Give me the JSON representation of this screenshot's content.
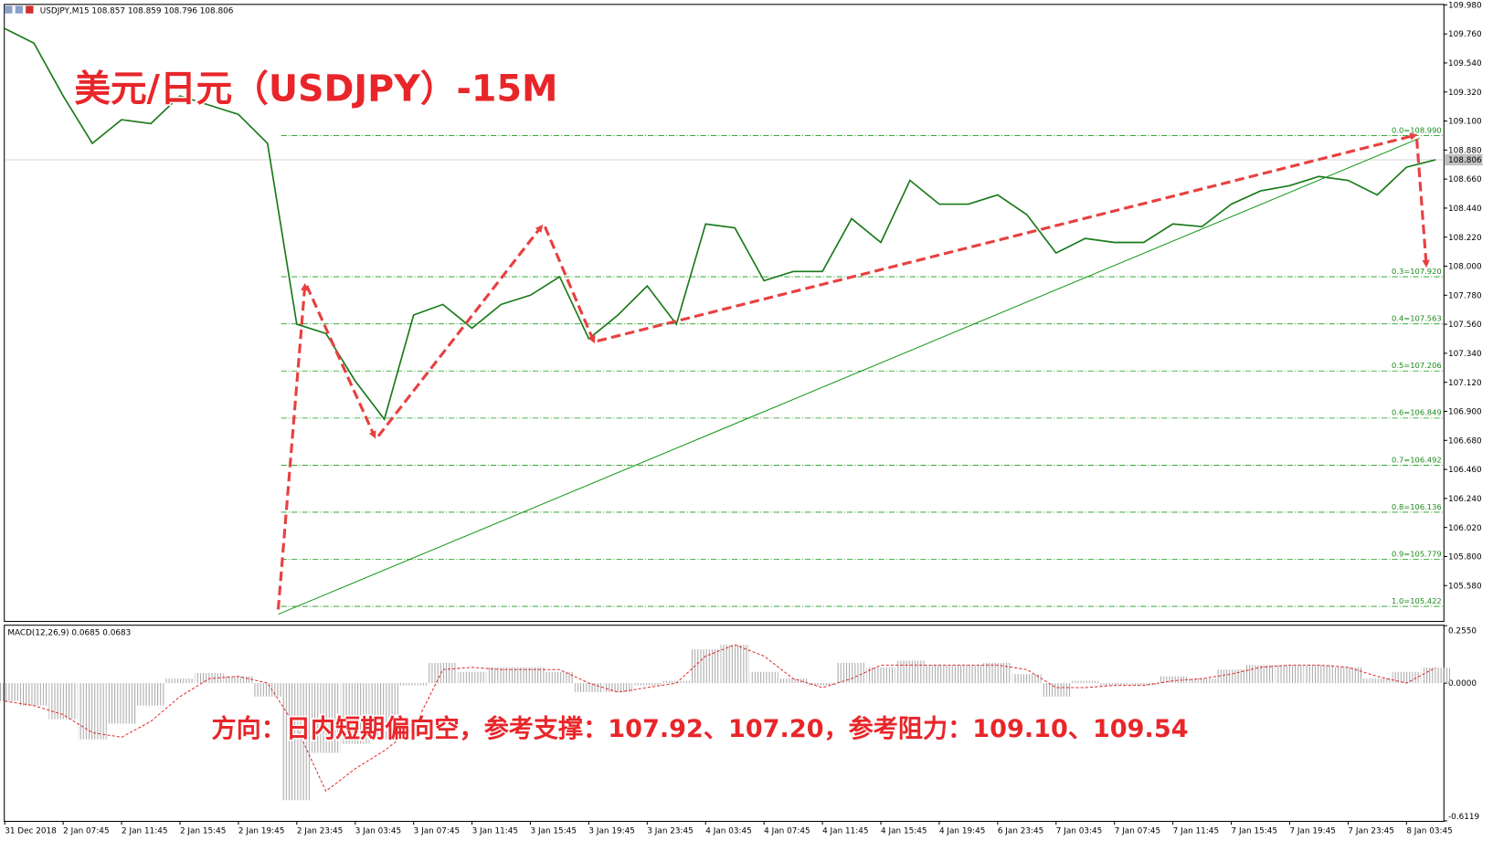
{
  "chart_data": [
    {
      "type": "line",
      "title": "美元/日元（USDJPY）-15M",
      "subtitle": "USDJPY,M15  108.857 108.859 108.796 108.806",
      "annotation": "方向：日内短期偏向空，参考支撑：107.92、107.20，参考阻力：109.10、109.54",
      "xticks": [
        "31 Dec 2018",
        "2 Jan 07:45",
        "2 Jan 11:45",
        "2 Jan 15:45",
        "2 Jan 19:45",
        "2 Jan 23:45",
        "3 Jan 03:45",
        "3 Jan 07:45",
        "3 Jan 11:45",
        "3 Jan 15:45",
        "3 Jan 19:45",
        "3 Jan 23:45",
        "4 Jan 03:45",
        "4 Jan 07:45",
        "4 Jan 11:45",
        "4 Jan 15:45",
        "4 Jan 19:45",
        "6 Jan 23:45",
        "7 Jan 03:45",
        "7 Jan 07:45",
        "7 Jan 11:45",
        "7 Jan 15:45",
        "7 Jan 19:45",
        "7 Jan 23:45",
        "8 Jan 03:45"
      ],
      "series": [
        {
          "color": "#1a7a1a",
          "values": [
            109.8,
            109.69,
            109.29,
            108.93,
            109.11,
            109.08,
            109.29,
            109.22,
            109.15,
            108.93,
            107.56,
            107.49,
            107.13,
            106.84,
            107.63,
            107.71,
            107.53,
            107.71,
            107.78,
            107.92,
            107.45,
            107.63,
            107.85,
            107.56,
            108.32,
            108.29,
            107.89,
            107.96,
            107.96,
            108.36,
            108.18,
            108.65,
            108.47,
            108.47,
            108.54,
            108.39,
            108.1,
            108.21,
            108.18,
            108.18,
            108.32,
            108.3,
            108.47,
            108.57,
            108.61,
            108.68,
            108.65,
            108.54,
            108.75,
            108.806
          ]
        }
      ],
      "ylim": [
        105.312,
        109.98
      ],
      "yticks": [
        {
          "value": 109.98,
          "label": "109.980"
        },
        {
          "value": 109.76,
          "label": "109.760"
        },
        {
          "value": 109.54,
          "label": "109.540"
        },
        {
          "value": 109.32,
          "label": "109.320"
        },
        {
          "value": 109.1,
          "label": "109.100"
        },
        {
          "value": 108.88,
          "label": "108.880"
        },
        {
          "value": 108.66,
          "label": "108.660"
        },
        {
          "value": 108.44,
          "label": "108.440"
        },
        {
          "value": 108.22,
          "label": "108.220"
        },
        {
          "value": 108.0,
          "label": "108.000"
        },
        {
          "value": 107.78,
          "label": "107.780"
        },
        {
          "value": 107.56,
          "label": "107.560"
        },
        {
          "value": 107.34,
          "label": "107.340"
        },
        {
          "value": 107.12,
          "label": "107.120"
        },
        {
          "value": 106.9,
          "label": "106.900"
        },
        {
          "value": 106.68,
          "label": "106.680"
        },
        {
          "value": 106.46,
          "label": "106.460"
        },
        {
          "value": 106.24,
          "label": "106.240"
        },
        {
          "value": 106.02,
          "label": "106.020"
        },
        {
          "value": 105.8,
          "label": "105.800"
        },
        {
          "value": 105.58,
          "label": "105.580"
        }
      ],
      "fib_levels": [
        {
          "value": 108.99,
          "label": "0.0=108.990"
        },
        {
          "value": 107.92,
          "label": "0.3=107.920"
        },
        {
          "value": 107.563,
          "label": "0.4=107.563"
        },
        {
          "value": 107.206,
          "label": "0.5=107.206"
        },
        {
          "value": 106.849,
          "label": "0.6=106.849"
        },
        {
          "value": 106.492,
          "label": "0.7=106.492"
        },
        {
          "value": 106.136,
          "label": "0.8=106.136"
        },
        {
          "value": 105.779,
          "label": "0.9=105.779"
        },
        {
          "value": 105.422,
          "label": "1.0=105.422"
        }
      ],
      "last_price": {
        "value": 108.806,
        "label": "108.806"
      }
    },
    {
      "type": "macd",
      "title": "MACD(12,26,9) 0.0685 0.0683",
      "series": [
        {
          "color": "#b0b0b0",
          "values": [
            -0.08,
            -0.1,
            -0.16,
            -0.25,
            -0.18,
            -0.1,
            0.02,
            0.045,
            0.03,
            -0.06,
            -0.52,
            -0.31,
            -0.27,
            -0.25,
            -0.01,
            0.09,
            0.05,
            0.07,
            0.07,
            0.05,
            -0.04,
            -0.04,
            -0.01,
            0.01,
            0.15,
            0.17,
            0.05,
            0.02,
            -0.01,
            0.09,
            0.07,
            0.1,
            0.08,
            0.08,
            0.09,
            0.04,
            -0.06,
            0.01,
            -0.01,
            -0.01,
            0.03,
            0.02,
            0.06,
            0.08,
            0.08,
            0.08,
            0.07,
            0.02,
            0.05,
            0.0685
          ]
        },
        {
          "color": "#e03030",
          "values": [
            -0.08,
            -0.1,
            -0.14,
            -0.22,
            -0.24,
            -0.17,
            -0.06,
            0.02,
            0.03,
            0.0,
            -0.2,
            -0.48,
            -0.38,
            -0.3,
            -0.2,
            0.06,
            0.07,
            0.06,
            0.06,
            0.06,
            0.0,
            -0.04,
            -0.02,
            0.0,
            0.12,
            0.17,
            0.12,
            0.02,
            -0.02,
            0.02,
            0.08,
            0.08,
            0.08,
            0.08,
            0.08,
            0.06,
            -0.02,
            -0.02,
            -0.01,
            -0.01,
            0.01,
            0.02,
            0.04,
            0.07,
            0.08,
            0.08,
            0.07,
            0.03,
            0.0,
            0.0683
          ]
        }
      ],
      "ylim": [
        -0.6119,
        0.255
      ],
      "yticks": [
        {
          "value": 0.255,
          "label": "0.2550"
        },
        {
          "value": 0,
          "label": "0.0000"
        },
        {
          "value": -0.6119,
          "label": "-0.6119"
        }
      ]
    }
  ]
}
